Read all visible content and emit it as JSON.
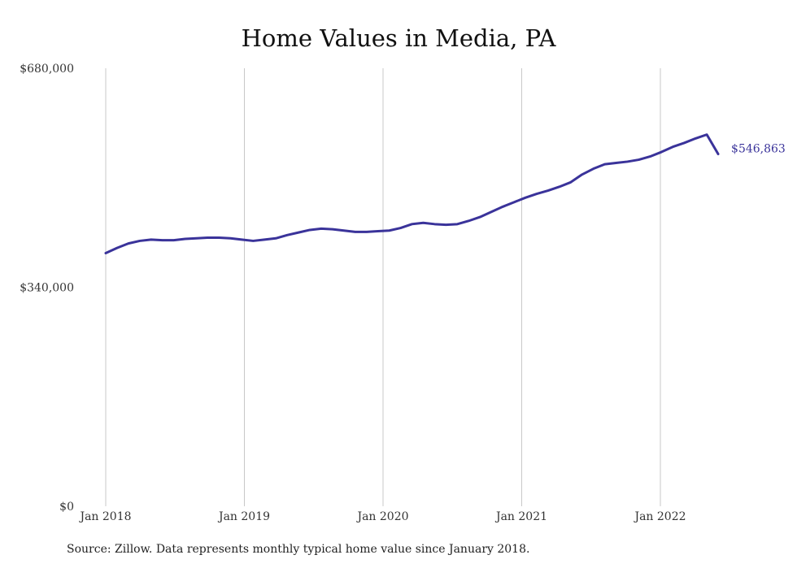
{
  "chart_data": {
    "type": "line",
    "title": "Home Values in Media, PA",
    "xlabel": "",
    "ylabel": "",
    "ylim": [
      0,
      680000
    ],
    "yticks": [
      "$0",
      "$340,000",
      "$680,000"
    ],
    "ytick_values": [
      0,
      340000,
      680000
    ],
    "xticks": [
      "Jan 2018",
      "Jan 2019",
      "Jan 2020",
      "Jan 2021",
      "Jan 2022"
    ],
    "xtick_months": [
      0,
      12,
      24,
      36,
      48
    ],
    "grid": "vertical",
    "line_color": "#3a339a",
    "end_label": "$546,863",
    "series": [
      {
        "values": [
          393000,
          401000,
          408000,
          412000,
          414000,
          413000,
          413000,
          415000,
          416000,
          417000,
          417000,
          416000,
          414000,
          412000,
          414000,
          416000,
          421000,
          425000,
          429000,
          431000,
          430000,
          428000,
          426000,
          426000,
          427000,
          428000,
          432000,
          438000,
          440000,
          438000,
          437000,
          438000,
          443000,
          449000,
          457000,
          465000,
          472000,
          479000,
          485000,
          490000,
          496000,
          503000,
          515000,
          524000,
          531000,
          533000,
          535000,
          538000,
          543000,
          550000,
          558000,
          564000,
          571000,
          577000,
          546863
        ]
      }
    ]
  },
  "footer": {
    "source": "Source: Zillow. Data represents monthly typical home value since January 2018."
  }
}
